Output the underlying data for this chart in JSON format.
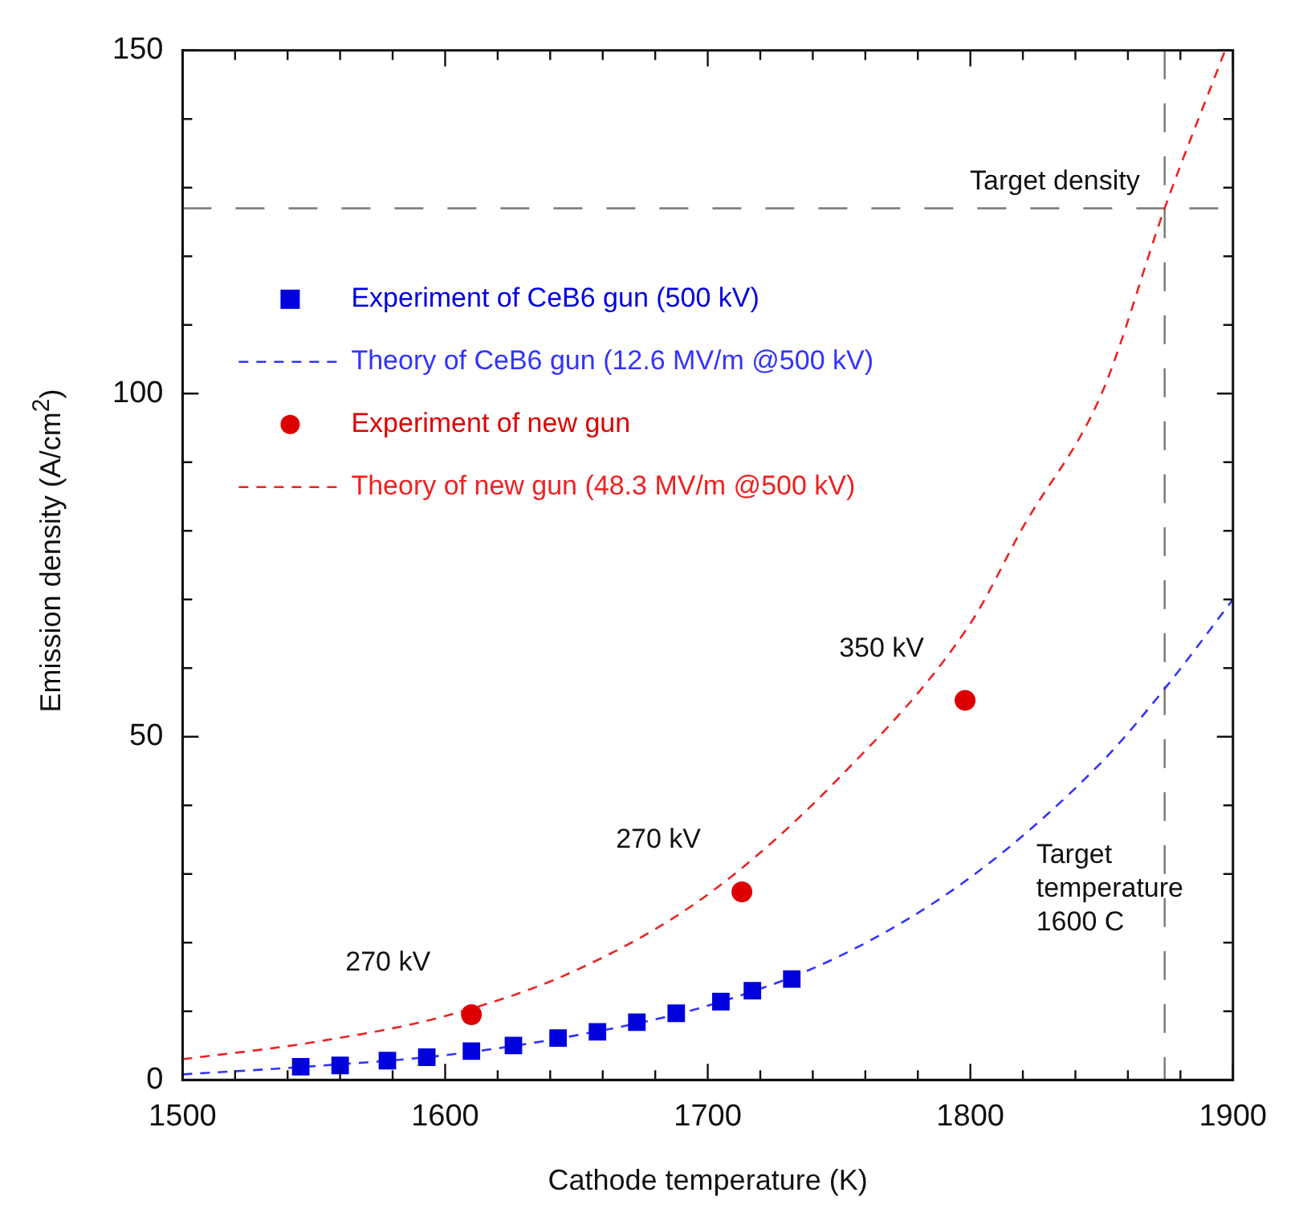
{
  "chart_data": {
    "type": "scatter",
    "xlabel": "Cathode temperature (K)",
    "ylabel": "Emission density (A/cm$^{2}$)",
    "xlim": [
      1500,
      1900
    ],
    "xticks": [
      1500,
      {
        "value": 1520,
        "label": null
      },
      {
        "value": 1540,
        "label": null
      },
      {
        "value": 1560,
        "label": null
      },
      {
        "value": 1580,
        "label": null
      },
      1600,
      {
        "value": 1620,
        "label": null
      },
      {
        "value": 1640,
        "label": null
      },
      {
        "value": 1660,
        "label": null
      },
      {
        "value": 1680,
        "label": null
      },
      1700,
      {
        "value": 1720,
        "label": null
      },
      {
        "value": 1740,
        "label": null
      },
      {
        "value": 1760,
        "label": null
      },
      {
        "value": 1780,
        "label": null
      },
      1800,
      {
        "value": 1820,
        "label": null
      },
      {
        "value": 1840,
        "label": null
      },
      {
        "value": 1860,
        "label": null
      },
      {
        "value": 1880,
        "label": null
      },
      1900
    ],
    "ylim": [
      0,
      150
    ],
    "yticks": [
      0,
      {
        "value": 10,
        "label": null
      },
      {
        "value": 20,
        "label": null
      },
      {
        "value": 30,
        "label": null
      },
      {
        "value": 40,
        "label": null
      },
      50,
      {
        "value": 60,
        "label": null
      },
      {
        "value": 70,
        "label": null
      },
      {
        "value": 80,
        "label": null
      },
      {
        "value": 90,
        "label": null
      },
      100,
      {
        "value": 110,
        "label": null
      },
      {
        "value": 120,
        "label": null
      },
      {
        "value": 130,
        "label": null
      },
      {
        "value": 140,
        "label": null
      },
      150
    ],
    "grid": false,
    "legend": "top left",
    "series": [
      {
        "name": "Experiment of CeB6 gun (500 kV)",
        "type": "scatter",
        "marker": "square",
        "color": "#0000dd",
        "x": [
          1545,
          1560,
          1578,
          1593,
          1610,
          1626,
          1643,
          1658,
          1673,
          1688,
          1705,
          1717,
          1732
        ],
        "values": [
          1.9,
          2.1,
          2.8,
          3.3,
          4.2,
          5.0,
          6.1,
          7.0,
          8.4,
          9.7,
          11.4,
          13.0,
          14.7
        ]
      },
      {
        "name": "Theory of CeB6 gun (12.6 MV/m @500 kV)",
        "type": "line",
        "marker": "none",
        "line_style": "dashed",
        "color": "#3333ff",
        "x": [
          1500,
          1550,
          1600,
          1650,
          1700,
          1750,
          1800,
          1850,
          1874,
          1900
        ],
        "values": [
          0.8,
          2.0,
          3.6,
          6.5,
          10.8,
          18,
          29.5,
          46.3,
          57,
          70
        ]
      },
      {
        "name": "Experiment of new gun",
        "type": "scatter",
        "marker": "circle",
        "color": "#dd0000",
        "x": [
          1610,
          1713,
          1798
        ],
        "values": [
          9.5,
          27.4,
          55.3
        ]
      },
      {
        "name": "Theory of new gun (48.3 MV/m @500 kV)",
        "type": "line",
        "marker": "none",
        "line_style": "dashed",
        "color": "#ee2222",
        "x": [
          1500,
          1550,
          1600,
          1650,
          1700,
          1750,
          1800,
          1820,
          1850,
          1874,
          1897
        ],
        "values": [
          3,
          5.5,
          9.3,
          16,
          27,
          44,
          66.5,
          80.5,
          100,
          127,
          150
        ]
      }
    ],
    "ref_lines": [
      {
        "axis": "y",
        "value": 127,
        "label": "Target density",
        "color": "#777777",
        "line_style": "dashed"
      },
      {
        "axis": "x",
        "value": 1874,
        "label": "Target\ntemperature\n1600 C",
        "color": "#777777",
        "line_style": "dashed"
      }
    ],
    "annotations": [
      {
        "text": "270 kV",
        "x": 1610,
        "y": 9.5
      },
      {
        "text": "270 kV",
        "x": 1713,
        "y": 27.4
      },
      {
        "text": "350 kV",
        "x": 1798,
        "y": 55.3
      }
    ]
  }
}
